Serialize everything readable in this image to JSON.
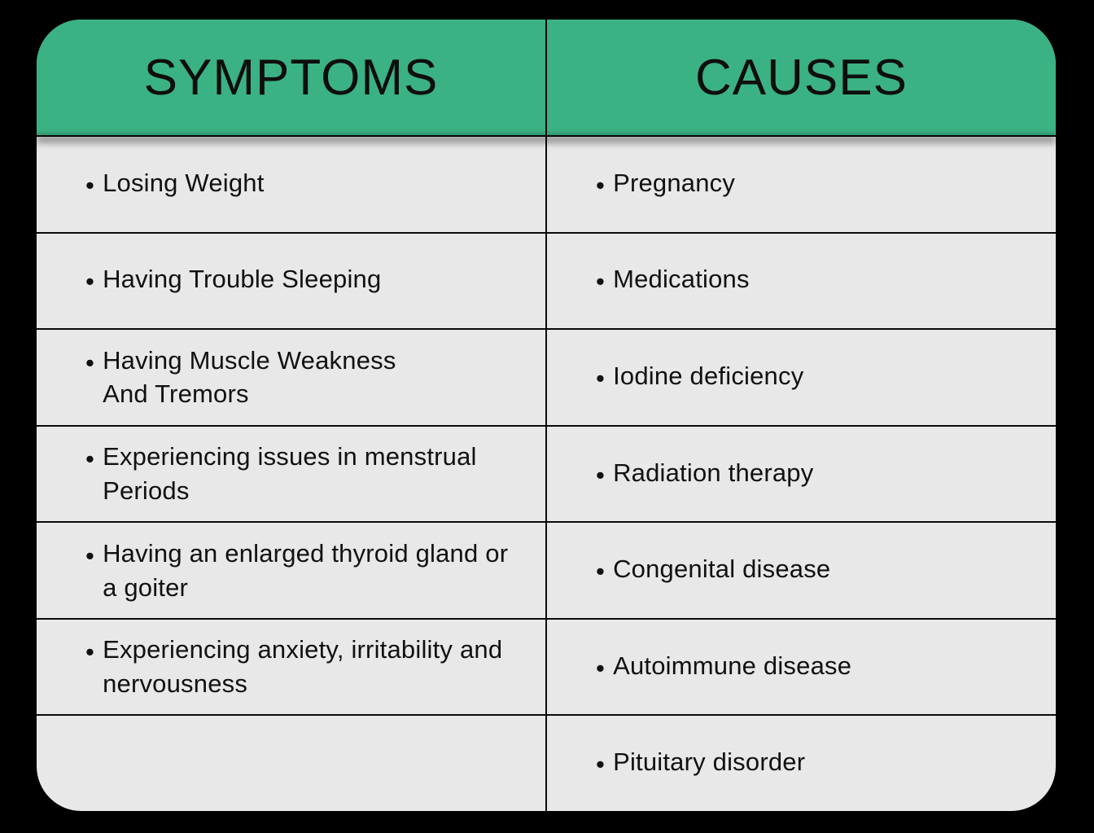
{
  "table": {
    "type": "table",
    "header_bg": "#3bb283",
    "body_bg": "#e8e8e8",
    "border_color": "#0a0a0a",
    "text_color": "#111111",
    "header_fontsize": 62,
    "cell_fontsize": 31,
    "corner_radius": 55,
    "columns": [
      {
        "title": "SYMPTOMS"
      },
      {
        "title": "CAUSES"
      }
    ],
    "rows": [
      {
        "symptom": "Losing Weight",
        "cause": "Pregnancy"
      },
      {
        "symptom": "Having Trouble Sleeping",
        "cause": "Medications"
      },
      {
        "symptom": "Having Muscle Weakness\nAnd Tremors",
        "cause": "Iodine deficiency"
      },
      {
        "symptom": "Experiencing issues in menstrual\nPeriods",
        "cause": "Radiation therapy"
      },
      {
        "symptom": "Having an enlarged thyroid gland or\na goiter",
        "cause": "Congenital disease"
      },
      {
        "symptom": "Experiencing anxiety, irritability and\nnervousness",
        "cause": "Autoimmune disease"
      },
      {
        "symptom": "",
        "cause": "Pituitary disorder"
      }
    ]
  }
}
